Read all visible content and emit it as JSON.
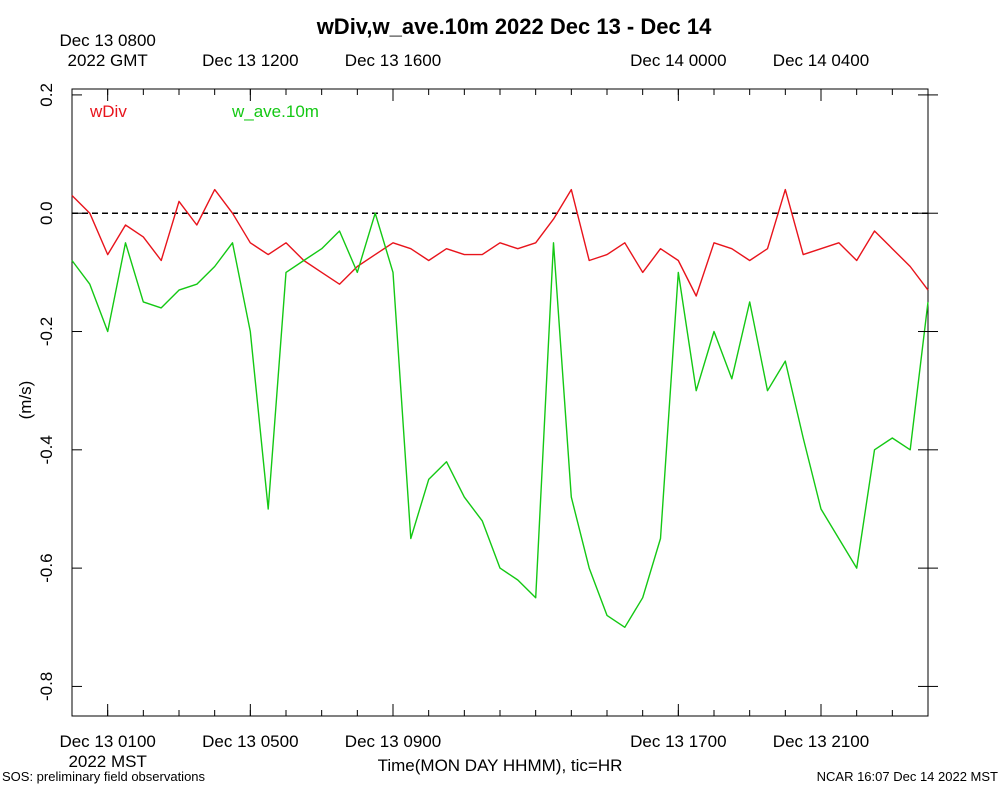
{
  "chart_data": {
    "type": "line",
    "title": "wDiv,w_ave.10m 2022 Dec 13 - Dec 14",
    "ylabel": "(m/s)",
    "xlabel": "Time(MON DAY HHMM), tic=HR",
    "ylim": [
      -0.85,
      0.21
    ],
    "xlim_hours_mst": [
      0.0,
      24.0
    ],
    "y_ticks": [
      "0.2",
      "0.0",
      "-0.2",
      "-0.4",
      "-0.6",
      "-0.8"
    ],
    "y_tick_values": [
      0.2,
      0.0,
      -0.2,
      -0.4,
      -0.6,
      -0.8
    ],
    "top_tick_labels": [
      {
        "hour": 1,
        "lines": [
          "Dec 13 0800",
          "2022 GMT"
        ]
      },
      {
        "hour": 5,
        "lines": [
          "Dec 13 1200"
        ]
      },
      {
        "hour": 9,
        "lines": [
          "Dec 13 1600"
        ]
      },
      {
        "hour": 17,
        "lines": [
          "Dec 14 0000"
        ]
      },
      {
        "hour": 21,
        "lines": [
          "Dec 14 0400"
        ]
      }
    ],
    "bottom_tick_labels": [
      {
        "hour": 1,
        "lines": [
          "Dec 13 0100",
          "2022 MST"
        ]
      },
      {
        "hour": 5,
        "lines": [
          "Dec 13 0500"
        ]
      },
      {
        "hour": 9,
        "lines": [
          "Dec 13 0900"
        ]
      },
      {
        "hour": 17,
        "lines": [
          "Dec 13 1700"
        ]
      },
      {
        "hour": 21,
        "lines": [
          "Dec 13 2100"
        ]
      }
    ],
    "zero_line": true,
    "grid": false,
    "series": [
      {
        "name": "wDiv",
        "color": "#e8141c",
        "x": [
          0.0,
          0.5,
          1.0,
          1.5,
          2.0,
          2.5,
          3.0,
          3.5,
          4.0,
          4.5,
          5.0,
          5.5,
          6.0,
          6.5,
          7.0,
          7.5,
          8.0,
          8.5,
          9.0,
          9.5,
          10.0,
          10.5,
          11.0,
          11.5,
          12.0,
          12.5,
          13.0,
          13.5,
          14.0,
          14.5,
          15.0,
          15.5,
          16.0,
          16.5,
          17.0,
          17.5,
          18.0,
          18.5,
          19.0,
          19.5,
          20.0,
          20.5,
          21.0,
          21.5,
          22.0,
          22.5,
          23.0,
          23.5,
          24.0
        ],
        "values": [
          0.03,
          0.0,
          -0.07,
          -0.02,
          -0.04,
          -0.08,
          0.02,
          -0.02,
          0.04,
          0.0,
          -0.05,
          -0.07,
          -0.05,
          -0.08,
          -0.1,
          -0.12,
          -0.09,
          -0.07,
          -0.05,
          -0.06,
          -0.08,
          -0.06,
          -0.07,
          -0.07,
          -0.05,
          -0.06,
          -0.05,
          -0.01,
          0.04,
          -0.08,
          -0.07,
          -0.05,
          -0.1,
          -0.06,
          -0.08,
          -0.14,
          -0.05,
          -0.06,
          -0.08,
          -0.06,
          0.04,
          -0.07,
          -0.06,
          -0.05,
          -0.08,
          -0.03,
          -0.06,
          -0.09,
          -0.13
        ]
      },
      {
        "name": "w_ave.10m",
        "color": "#14c814",
        "x": [
          0.0,
          0.5,
          1.0,
          1.5,
          2.0,
          2.5,
          3.0,
          3.5,
          4.0,
          4.5,
          5.0,
          5.5,
          6.0,
          6.5,
          7.0,
          7.5,
          8.0,
          8.5,
          9.0,
          9.5,
          10.0,
          10.5,
          11.0,
          11.5,
          12.0,
          12.5,
          13.0,
          13.5,
          14.0,
          14.5,
          15.0,
          15.5,
          16.0,
          16.5,
          17.0,
          17.5,
          18.0,
          18.5,
          19.0,
          19.5,
          20.0,
          20.5,
          21.0,
          21.5,
          22.0,
          22.5,
          23.0,
          23.5,
          24.0
        ],
        "values": [
          -0.08,
          -0.12,
          -0.2,
          -0.05,
          -0.15,
          -0.16,
          -0.13,
          -0.12,
          -0.09,
          -0.05,
          -0.2,
          -0.5,
          -0.1,
          -0.08,
          -0.06,
          -0.03,
          -0.1,
          0.0,
          -0.1,
          -0.55,
          -0.45,
          -0.42,
          -0.48,
          -0.52,
          -0.6,
          -0.62,
          -0.65,
          -0.05,
          -0.48,
          -0.6,
          -0.68,
          -0.7,
          -0.65,
          -0.55,
          -0.1,
          -0.3,
          -0.2,
          -0.28,
          -0.15,
          -0.3,
          -0.25,
          -0.38,
          -0.5,
          -0.55,
          -0.6,
          -0.4,
          -0.38,
          -0.4,
          -0.15
        ]
      }
    ]
  },
  "footer": {
    "left": "SOS: preliminary field observations",
    "right": "NCAR 16:07 Dec 14 2022 MST"
  }
}
